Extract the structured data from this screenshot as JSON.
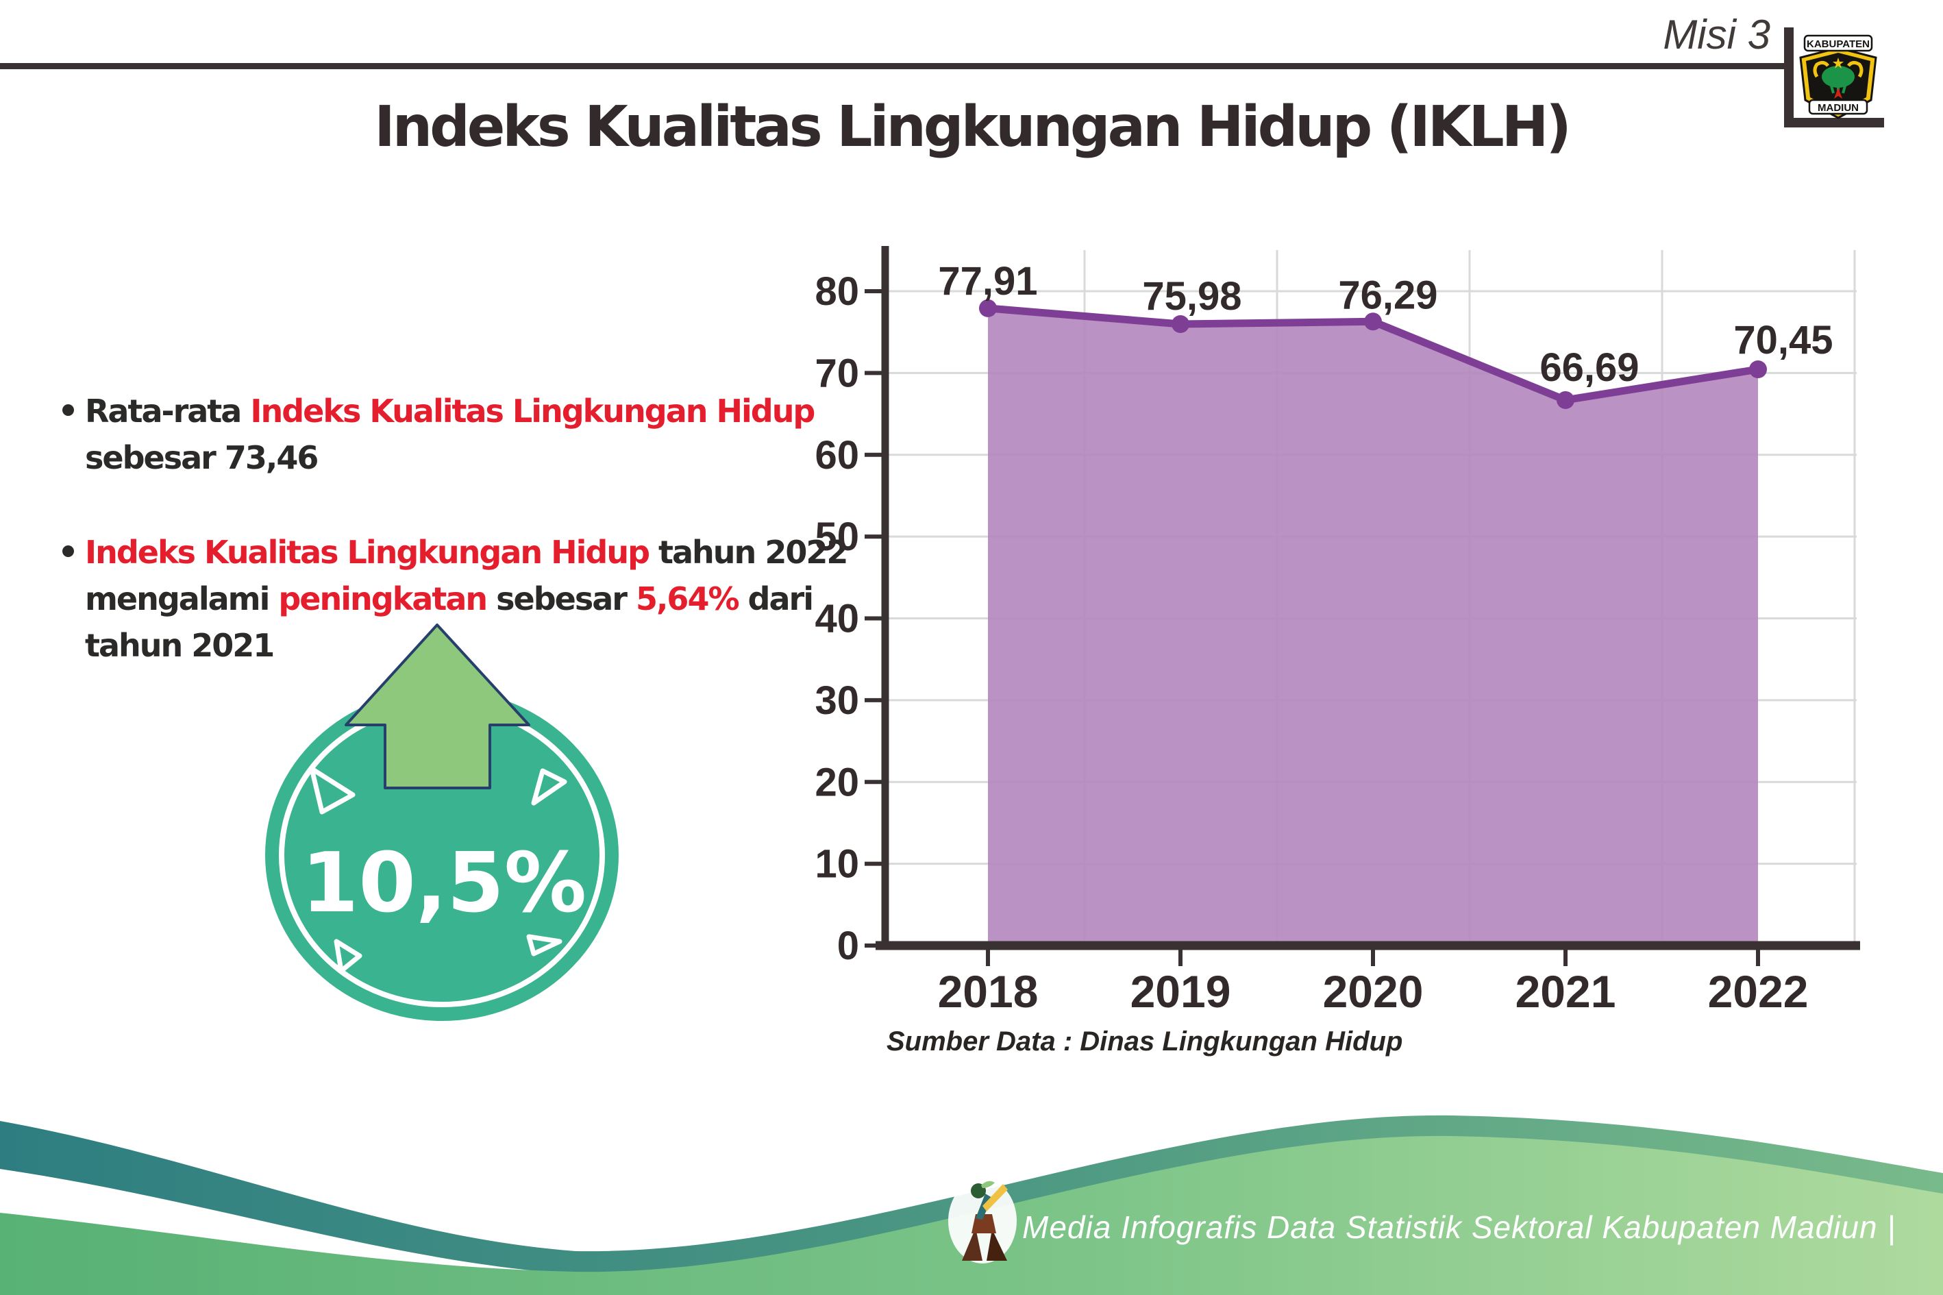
{
  "header": {
    "misi": "Misi 3",
    "logo": {
      "top": "KABUPATEN",
      "bottom": "MADIUN"
    }
  },
  "title": "Indeks Kualitas Lingkungan Hidup (IKLH)",
  "bullets": [
    {
      "lines": [
        [
          {
            "t": "Rata-rata ",
            "c": "dark"
          },
          {
            "t": "Indeks Kualitas Lingkungan Hidup",
            "c": "red"
          }
        ],
        [
          {
            "t": "sebesar 73,46",
            "c": "dark"
          }
        ]
      ]
    },
    {
      "lines": [
        [
          {
            "t": "Indeks Kualitas Lingkungan Hidup",
            "c": "red"
          },
          {
            "t": " tahun 2022",
            "c": "dark"
          }
        ],
        [
          {
            "t": "mengalami ",
            "c": "dark"
          },
          {
            "t": "peningkatan",
            "c": "red"
          },
          {
            "t": " sebesar ",
            "c": "dark"
          },
          {
            "t": "5,64%",
            "c": "red"
          },
          {
            "t": " dari",
            "c": "dark"
          }
        ],
        [
          {
            "t": "tahun 2021",
            "c": "dark"
          }
        ]
      ]
    }
  ],
  "badge": {
    "value": "10,5%"
  },
  "chart_data": {
    "type": "area",
    "categories": [
      "2018",
      "2019",
      "2020",
      "2021",
      "2022"
    ],
    "values": [
      77.91,
      75.98,
      76.29,
      66.69,
      70.45
    ],
    "point_labels": [
      "77,91",
      "75,98",
      "76,29",
      "66,69",
      "70,45"
    ],
    "yticks": [
      0,
      10,
      20,
      30,
      40,
      50,
      60,
      70,
      80
    ],
    "ylim": [
      0,
      80
    ],
    "title": "",
    "xlabel": "",
    "ylabel": "",
    "grid": true,
    "legend": "none",
    "source": "Sumber Data : Dinas Lingkungan Hidup"
  },
  "footer": {
    "credit": "Media Infografis Data Statistik Sektoral Kabupaten Madiun |"
  },
  "colors": {
    "accent_red": "#e41e2d",
    "text_dark": "#2b2a29",
    "title_color": "#332a2b",
    "axis": "#3a3132",
    "gridline": "#d9d9d9",
    "area_fill": "#b286bd",
    "line": "#7e3e96",
    "marker": "#7e3e96",
    "label_color": "#332b2b",
    "badge_teal": "#3ab390",
    "arrow_green": "#8dc87d",
    "arrow_outline": "#27406b",
    "wave_teal": "#2e7e81",
    "wave_teal_green": "#79ba8b",
    "wave_green_dark": "#58b175",
    "wave_green_light": "#aeda9e",
    "footer_text": "#ffffff"
  }
}
